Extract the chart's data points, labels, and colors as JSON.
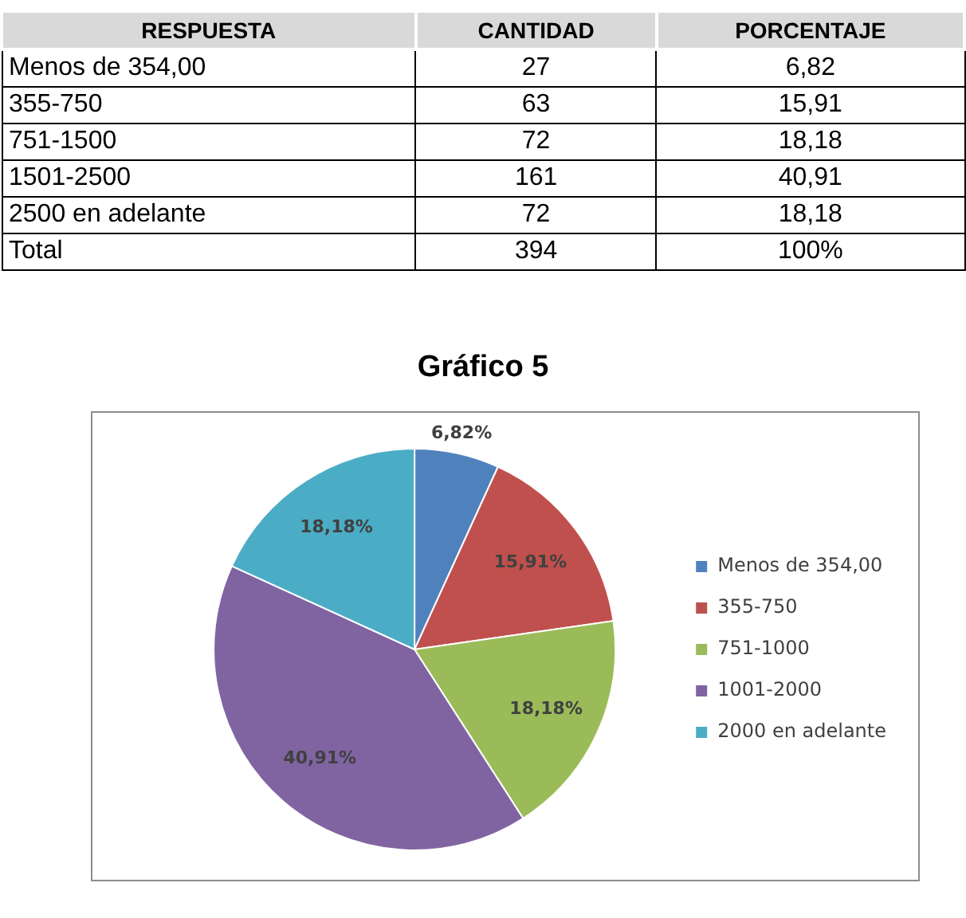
{
  "chart_data": [
    {
      "type": "other",
      "annotations": [
        "RESPUESTA",
        "CANTIDAD",
        "PORCENTAJE",
        "Menos de 354,00",
        "27",
        "6,82",
        "355-750",
        "63",
        "15,91",
        "751-1500",
        "72",
        "18,18",
        "1501-2500",
        "161",
        "40,91",
        "2500 en adelante",
        "72",
        "18,18",
        "Total",
        "394",
        "100%"
      ]
    },
    {
      "type": "pie",
      "title": "Gráfico 5",
      "categories": [
        "Menos de 354,00",
        "355-750",
        "751-1000",
        "1001-2000",
        "2000 en adelante"
      ],
      "values": [
        6.82,
        15.91,
        18.18,
        40.91,
        18.18
      ],
      "colors": [
        "#4f81bd",
        "#c0504d",
        "#9bbb59",
        "#8064a2",
        "#4bacc6"
      ],
      "value_labels": [
        "6,82%",
        "15,91%",
        "18,18%",
        "40,91%",
        "18,18%"
      ],
      "legend": "right"
    }
  ]
}
